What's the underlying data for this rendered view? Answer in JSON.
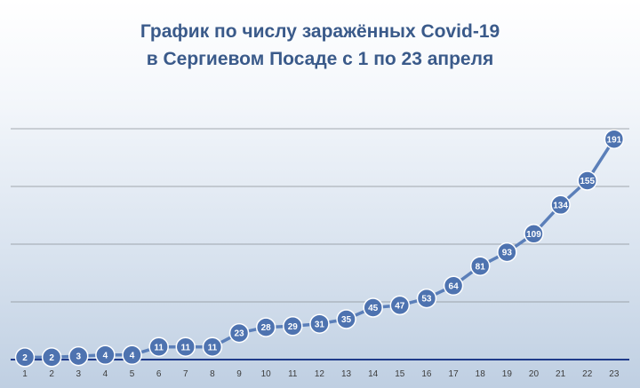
{
  "chart_data": {
    "type": "line",
    "title_line1": "График по числу заражённых Covid-19",
    "title_line2": "в Сергиевом Посаде с 1 по 23 апреля",
    "categories": [
      "1",
      "2",
      "3",
      "4",
      "5",
      "6",
      "7",
      "8",
      "9",
      "10",
      "11",
      "12",
      "13",
      "14",
      "15",
      "16",
      "17",
      "18",
      "19",
      "20",
      "21",
      "22",
      "23"
    ],
    "values": [
      2,
      2,
      3,
      4,
      4,
      11,
      11,
      11,
      23,
      28,
      29,
      31,
      35,
      45,
      47,
      53,
      64,
      81,
      93,
      109,
      134,
      155,
      191
    ],
    "ylim": [
      0,
      200
    ],
    "grid": true,
    "legend": "none",
    "colors": {
      "line": "#5b7fb9",
      "marker_fill": "#4e73b0",
      "marker_stroke": "#ffffff",
      "title": "#3a5a8a",
      "axis": "#1f3a8a",
      "grid": "#8a8f96"
    }
  }
}
